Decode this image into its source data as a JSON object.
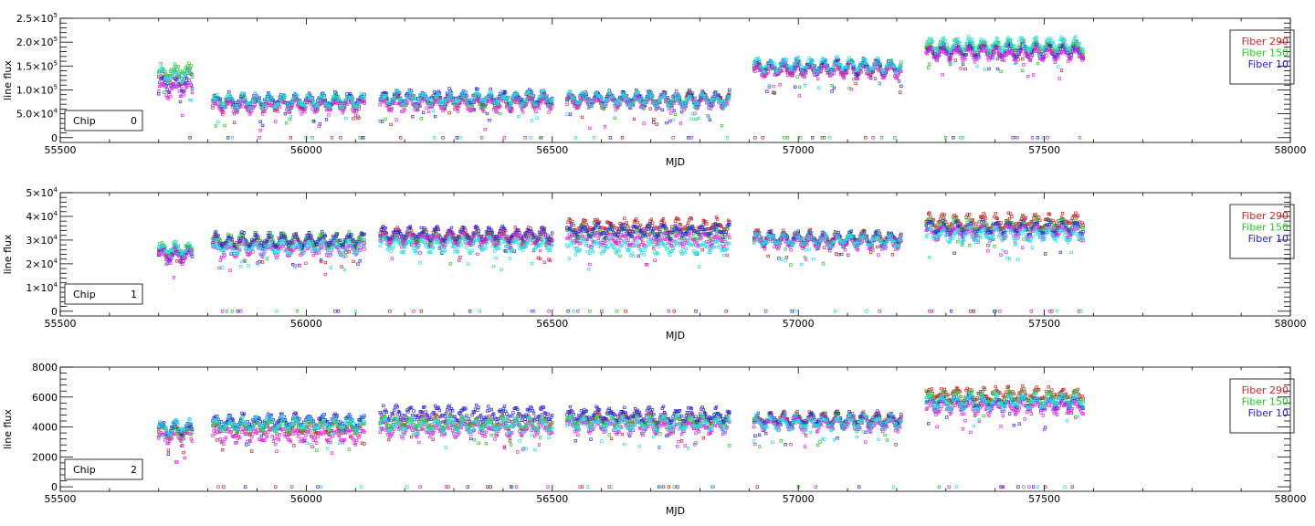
{
  "chart_data": [
    {
      "type": "scatter",
      "panel": "chip-0",
      "xlabel": "MJD",
      "ylabel": "line flux",
      "xlim": [
        55500,
        58000
      ],
      "ylim": [
        -10000,
        250000
      ],
      "xticks": [
        55500,
        56000,
        56500,
        57000,
        57500,
        58000
      ],
      "xtick_labels": [
        "55500",
        "56000",
        "56500",
        "57000",
        "57500",
        "58000"
      ],
      "yticks": [
        0,
        50000,
        100000,
        150000,
        200000,
        250000
      ],
      "ytick_labels": [
        {
          "mantissa": "0",
          "exp": ""
        },
        {
          "mantissa": "5.0×10",
          "exp": "4"
        },
        {
          "mantissa": "1.0×10",
          "exp": "5"
        },
        {
          "mantissa": "1.5×10",
          "exp": "5"
        },
        {
          "mantissa": "2.0×10",
          "exp": "5"
        },
        {
          "mantissa": "2.5×10",
          "exp": "5"
        }
      ],
      "chip_label": "Chip",
      "chip_value": "0",
      "legend": [
        {
          "label": "Fiber 290",
          "color": "#e02020"
        },
        {
          "label": "Fiber 150",
          "color": "#20d020"
        },
        {
          "label": "Fiber 10",
          "color": "#2020e0"
        }
      ],
      "series": [
        {
          "name": "Fiber 290",
          "color": "#c81e1e",
          "segments": [
            [
              55700,
              55770,
              125000
            ],
            [
              55810,
              56120,
              72000
            ],
            [
              56150,
              56500,
              78000
            ],
            [
              56530,
              56860,
              80000
            ],
            [
              56910,
              57210,
              145000
            ],
            [
              57260,
              57580,
              185000
            ]
          ]
        },
        {
          "name": "Fiber 150",
          "color": "#20c820",
          "segments": [
            [
              55700,
              55770,
              140000
            ],
            [
              55810,
              56120,
              75000
            ],
            [
              56150,
              56500,
              76000
            ],
            [
              56530,
              56860,
              78000
            ],
            [
              56910,
              57210,
              147000
            ],
            [
              57260,
              57580,
              190000
            ]
          ]
        },
        {
          "name": "Fiber 10",
          "color": "#2424dc",
          "segments": [
            [
              55700,
              55770,
              110000
            ],
            [
              55810,
              56120,
              78000
            ],
            [
              56150,
              56500,
              85000
            ],
            [
              56530,
              56860,
              83000
            ],
            [
              56910,
              57210,
              148000
            ],
            [
              57260,
              57580,
              180000
            ]
          ]
        },
        {
          "name": "",
          "color": "#e020e0",
          "segments": [
            [
              55700,
              55770,
              100000
            ],
            [
              55810,
              56120,
              65000
            ],
            [
              56150,
              56500,
              70000
            ],
            [
              56530,
              56860,
              74000
            ],
            [
              56910,
              57210,
              140000
            ],
            [
              57260,
              57580,
              175000
            ]
          ]
        },
        {
          "name": "",
          "color": "#20e0e8",
          "segments": [
            [
              55700,
              55770,
              130000
            ],
            [
              55810,
              56120,
              76000
            ],
            [
              56150,
              56500,
              82000
            ],
            [
              56530,
              56860,
              80000
            ],
            [
              56910,
              57210,
              152000
            ],
            [
              57260,
              57580,
              195000
            ]
          ]
        }
      ]
    },
    {
      "type": "scatter",
      "panel": "chip-1",
      "xlabel": "MJD",
      "ylabel": "line flux",
      "xlim": [
        55500,
        58000
      ],
      "ylim": [
        -2000,
        50000
      ],
      "xticks": [
        55500,
        56000,
        56500,
        57000,
        57500,
        58000
      ],
      "xtick_labels": [
        "55500",
        "56000",
        "56500",
        "57000",
        "57500",
        "58000"
      ],
      "yticks": [
        0,
        10000,
        20000,
        30000,
        40000,
        50000
      ],
      "ytick_labels": [
        {
          "mantissa": "0",
          "exp": ""
        },
        {
          "mantissa": "1×10",
          "exp": "4"
        },
        {
          "mantissa": "2×10",
          "exp": "4"
        },
        {
          "mantissa": "3×10",
          "exp": "4"
        },
        {
          "mantissa": "4×10",
          "exp": "4"
        },
        {
          "mantissa": "5×10",
          "exp": "4"
        }
      ],
      "chip_label": "Chip",
      "chip_value": "1",
      "legend": [
        {
          "label": "Fiber 290",
          "color": "#e02020"
        },
        {
          "label": "Fiber 150",
          "color": "#20d020"
        },
        {
          "label": "Fiber 10",
          "color": "#2020e0"
        }
      ],
      "series": [
        {
          "name": "Fiber 290",
          "color": "#c81e1e",
          "segments": [
            [
              55700,
              55770,
              25000
            ],
            [
              55810,
              56120,
              29000
            ],
            [
              56150,
              56500,
              32000
            ],
            [
              56530,
              56860,
              36000
            ],
            [
              56910,
              57210,
              31000
            ],
            [
              57260,
              57580,
              38000
            ]
          ]
        },
        {
          "name": "Fiber 150",
          "color": "#20c820",
          "segments": [
            [
              55700,
              55770,
              26000
            ],
            [
              55810,
              56120,
              30000
            ],
            [
              56150,
              56500,
              30500
            ],
            [
              56530,
              56860,
              33000
            ],
            [
              56910,
              57210,
              30000
            ],
            [
              57260,
              57580,
              36000
            ]
          ]
        },
        {
          "name": "Fiber 10",
          "color": "#2424dc",
          "segments": [
            [
              55700,
              55770,
              24000
            ],
            [
              55810,
              56120,
              30000
            ],
            [
              56150,
              56500,
              32500
            ],
            [
              56530,
              56860,
              34000
            ],
            [
              56910,
              57210,
              30500
            ],
            [
              57260,
              57580,
              35000
            ]
          ]
        },
        {
          "name": "",
          "color": "#e020e0",
          "segments": [
            [
              55700,
              55770,
              23000
            ],
            [
              55810,
              56120,
              26000
            ],
            [
              56150,
              56500,
              30000
            ],
            [
              56530,
              56860,
              30000
            ],
            [
              56910,
              57210,
              29000
            ],
            [
              57260,
              57580,
              33000
            ]
          ]
        },
        {
          "name": "",
          "color": "#20e0e8",
          "segments": [
            [
              55700,
              55770,
              26000
            ],
            [
              55810,
              56120,
              27000
            ],
            [
              56150,
              56500,
              28000
            ],
            [
              56530,
              56860,
              27000
            ],
            [
              56910,
              57210,
              30000
            ],
            [
              57260,
              57580,
              32000
            ]
          ]
        }
      ]
    },
    {
      "type": "scatter",
      "panel": "chip-2",
      "xlabel": "MJD",
      "ylabel": "line flux",
      "xlim": [
        55500,
        58000
      ],
      "ylim": [
        -300,
        8000
      ],
      "xticks": [
        55500,
        56000,
        56500,
        57000,
        57500,
        58000
      ],
      "xtick_labels": [
        "55500",
        "56000",
        "56500",
        "57000",
        "57500",
        "58000"
      ],
      "yticks": [
        0,
        2000,
        4000,
        6000,
        8000
      ],
      "ytick_labels": [
        {
          "mantissa": "0",
          "exp": ""
        },
        {
          "mantissa": "2000",
          "exp": ""
        },
        {
          "mantissa": "4000",
          "exp": ""
        },
        {
          "mantissa": "6000",
          "exp": ""
        },
        {
          "mantissa": "8000",
          "exp": ""
        }
      ],
      "chip_label": "Chip",
      "chip_value": "2",
      "legend": [
        {
          "label": "Fiber 290",
          "color": "#e02020"
        },
        {
          "label": "Fiber 150",
          "color": "#20d020"
        },
        {
          "label": "Fiber 10",
          "color": "#2020e0"
        }
      ],
      "series": [
        {
          "name": "Fiber 290",
          "color": "#c81e1e",
          "segments": [
            [
              55700,
              55770,
              3800
            ],
            [
              55810,
              56120,
              4000
            ],
            [
              56150,
              56500,
              4300
            ],
            [
              56530,
              56860,
              4500
            ],
            [
              56910,
              57210,
              4500
            ],
            [
              57260,
              57580,
              6200
            ]
          ]
        },
        {
          "name": "Fiber 150",
          "color": "#20c820",
          "segments": [
            [
              55700,
              55770,
              3600
            ],
            [
              55810,
              56120,
              4100
            ],
            [
              56150,
              56500,
              4200
            ],
            [
              56530,
              56860,
              4400
            ],
            [
              56910,
              57210,
              4400
            ],
            [
              57260,
              57580,
              5900
            ]
          ]
        },
        {
          "name": "Fiber 10",
          "color": "#2424dc",
          "segments": [
            [
              55700,
              55770,
              3900
            ],
            [
              55810,
              56120,
              4400
            ],
            [
              56150,
              56500,
              4900
            ],
            [
              56530,
              56860,
              4800
            ],
            [
              56910,
              57210,
              4500
            ],
            [
              57260,
              57580,
              5600
            ]
          ]
        },
        {
          "name": "",
          "color": "#e020e0",
          "segments": [
            [
              55700,
              55770,
              3300
            ],
            [
              55810,
              56120,
              3400
            ],
            [
              56150,
              56500,
              3800
            ],
            [
              56530,
              56860,
              4000
            ],
            [
              56910,
              57210,
              4200
            ],
            [
              57260,
              57580,
              5300
            ]
          ]
        },
        {
          "name": "",
          "color": "#20e0e8",
          "segments": [
            [
              55700,
              55770,
              4000
            ],
            [
              55810,
              56120,
              4200
            ],
            [
              56150,
              56500,
              4100
            ],
            [
              56530,
              56860,
              4200
            ],
            [
              56910,
              57210,
              4300
            ],
            [
              57260,
              57580,
              5700
            ]
          ]
        }
      ]
    }
  ]
}
